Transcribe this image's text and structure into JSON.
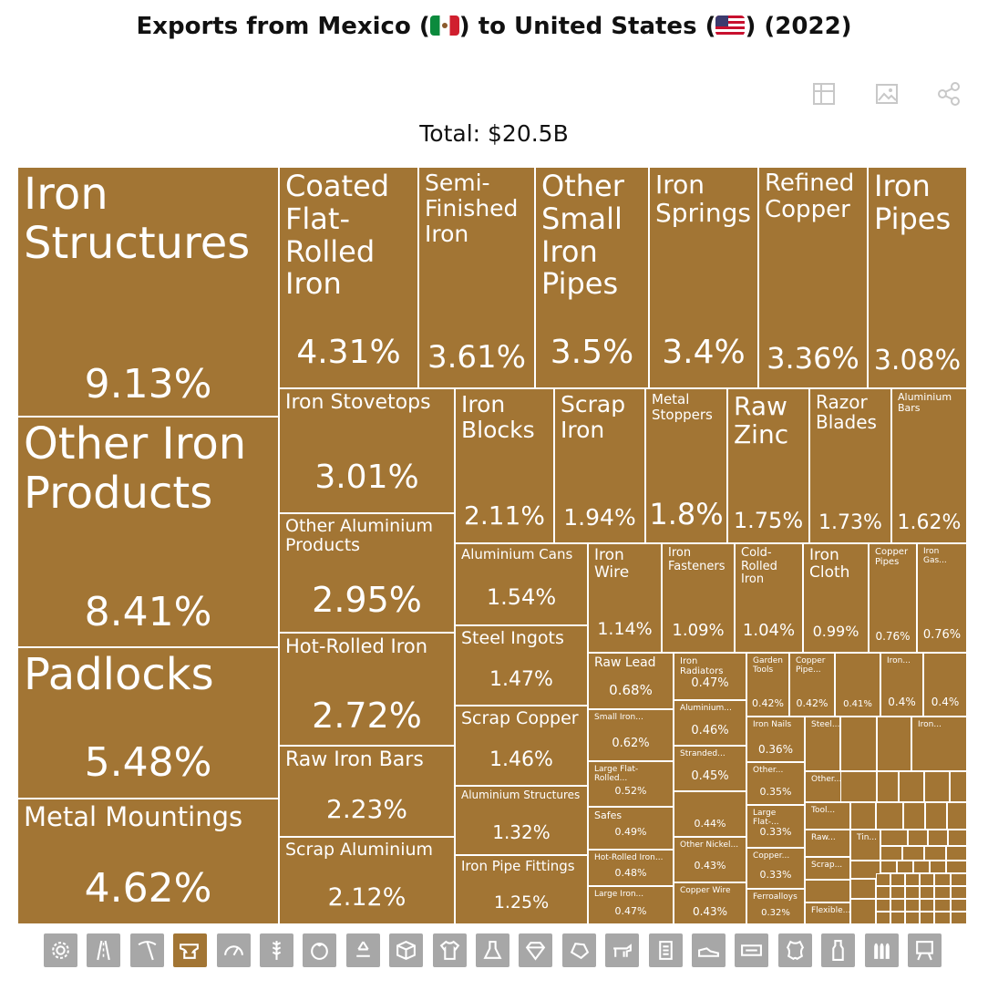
{
  "title": {
    "prefix": "Exports from Mexico (",
    "middle": ") to United States (",
    "suffix": ") (2022)"
  },
  "toolbar": {
    "icons": [
      "table-icon",
      "image-icon",
      "share-icon"
    ]
  },
  "total_label": "Total: $20.5B",
  "colors": {
    "tile": "#a27534",
    "icon_inactive": "#a7a7a7",
    "icon_active": "#a27534"
  },
  "chart_data": {
    "type": "treemap",
    "title": "Exports from Mexico to United States (2022)",
    "total": "$20.5B",
    "items": [
      {
        "label": "Iron Structures",
        "value": "9.13%"
      },
      {
        "label": "Other Iron Products",
        "value": "8.41%"
      },
      {
        "label": "Padlocks",
        "value": "5.48%"
      },
      {
        "label": "Metal Mountings",
        "value": "4.62%"
      },
      {
        "label": "Coated Flat-Rolled Iron",
        "value": "4.31%"
      },
      {
        "label": "Semi-Finished Iron",
        "value": "3.61%"
      },
      {
        "label": "Other Small Iron Pipes",
        "value": "3.5%"
      },
      {
        "label": "Iron Springs",
        "value": "3.4%"
      },
      {
        "label": "Refined Copper",
        "value": "3.36%"
      },
      {
        "label": "Iron Pipes",
        "value": "3.08%"
      },
      {
        "label": "Iron Stovetops",
        "value": "3.01%"
      },
      {
        "label": "Other Aluminium Products",
        "value": "2.95%"
      },
      {
        "label": "Hot-Rolled Iron",
        "value": "2.72%"
      },
      {
        "label": "Raw Iron Bars",
        "value": "2.23%"
      },
      {
        "label": "Scrap Aluminium",
        "value": "2.12%"
      },
      {
        "label": "Iron Blocks",
        "value": "2.11%"
      },
      {
        "label": "Scrap Iron",
        "value": "1.94%"
      },
      {
        "label": "Metal Stoppers",
        "value": "1.8%"
      },
      {
        "label": "Raw Zinc",
        "value": "1.75%"
      },
      {
        "label": "Razor Blades",
        "value": "1.73%"
      },
      {
        "label": "Aluminium Bars",
        "value": "1.62%"
      },
      {
        "label": "Aluminium Cans",
        "value": "1.54%"
      },
      {
        "label": "Steel Ingots",
        "value": "1.47%"
      },
      {
        "label": "Scrap Copper",
        "value": "1.46%"
      },
      {
        "label": "Aluminium Structures",
        "value": "1.32%"
      },
      {
        "label": "Iron Pipe Fittings",
        "value": "1.25%"
      },
      {
        "label": "Iron Wire",
        "value": "1.14%"
      },
      {
        "label": "Iron Fasteners",
        "value": "1.09%"
      },
      {
        "label": "Cold-Rolled Iron",
        "value": "1.04%"
      },
      {
        "label": "Iron Cloth",
        "value": "0.99%"
      },
      {
        "label": "Copper Pipes",
        "value": "0.76%"
      },
      {
        "label": "Iron Gas...",
        "value": "0.76%"
      },
      {
        "label": "Raw Lead",
        "value": "0.68%"
      },
      {
        "label": "Iron Radiators",
        "value": "0.47%"
      },
      {
        "label": "Garden Tools",
        "value": "0.42%"
      },
      {
        "label": "Copper Pipe...",
        "value": "0.42%"
      },
      {
        "label": "",
        "value": "0.41%"
      },
      {
        "label": "Iron...",
        "value": "0.4%"
      },
      {
        "label": "",
        "value": "0.4%"
      },
      {
        "label": "Small Iron...",
        "value": "0.62%"
      },
      {
        "label": "Aluminium...",
        "value": "0.46%"
      },
      {
        "label": "Iron Nails",
        "value": "0.36%"
      },
      {
        "label": "Steel...",
        "value": ""
      },
      {
        "label": "Iron...",
        "value": ""
      },
      {
        "label": "Large Flat-Rolled...",
        "value": "0.52%"
      },
      {
        "label": "Stranded...",
        "value": "0.45%"
      },
      {
        "label": "Other...",
        "value": "0.35%"
      },
      {
        "label": "Other...",
        "value": ""
      },
      {
        "label": "Safes",
        "value": "0.49%"
      },
      {
        "label": "",
        "value": "0.44%"
      },
      {
        "label": "Large Flat-...",
        "value": "0.33%"
      },
      {
        "label": "Tool...",
        "value": ""
      },
      {
        "label": "Raw...",
        "value": ""
      },
      {
        "label": "Tin...",
        "value": ""
      },
      {
        "label": "Hot-Rolled Iron...",
        "value": "0.48%"
      },
      {
        "label": "Other Nickel...",
        "value": "0.43%"
      },
      {
        "label": "Copper...",
        "value": "0.33%"
      },
      {
        "label": "Scrap...",
        "value": ""
      },
      {
        "label": "Large Iron...",
        "value": "0.47%"
      },
      {
        "label": "Copper Wire",
        "value": "0.43%"
      },
      {
        "label": "Ferroalloys",
        "value": "0.32%"
      },
      {
        "label": "Flexible...",
        "value": ""
      }
    ]
  },
  "bottom_icons": [
    "gear-icon",
    "road-icon",
    "pickaxe-icon",
    "anvil-icon",
    "gauge-icon",
    "wheat-icon",
    "tomato-icon",
    "recycle-icon",
    "box-icon",
    "shirt-icon",
    "flask-icon",
    "diamond-icon",
    "stone-icon",
    "animal-icon",
    "paper-icon",
    "shoe-icon",
    "tape-icon",
    "hide-icon",
    "bottle-icon",
    "bullets-icon",
    "easel-icon"
  ],
  "active_bottom_icon": "anvil-icon"
}
